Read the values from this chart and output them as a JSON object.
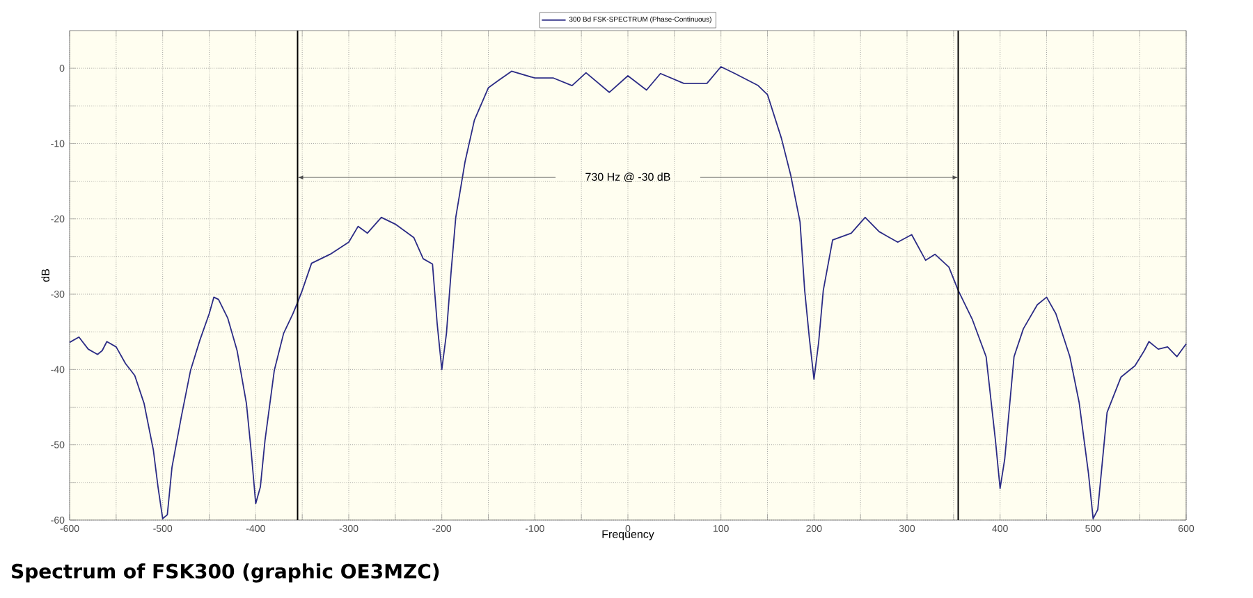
{
  "chart_data": {
    "type": "line",
    "title": "Spectrum of FSK300 (graphic OE3MZC)",
    "xlabel": "Frequency",
    "ylabel": "dB",
    "xlim": [
      -600,
      600
    ],
    "ylim": [
      -60,
      5
    ],
    "xticks": [
      -600,
      {
        "value": -550,
        "label": null
      },
      -500,
      {
        "value": -450,
        "label": null
      },
      -400,
      {
        "value": -350,
        "label": null
      },
      -300,
      {
        "value": -250,
        "label": null
      },
      -200,
      {
        "value": -150,
        "label": null
      },
      -100,
      {
        "value": -50,
        "label": null
      },
      0,
      {
        "value": 50,
        "label": null
      },
      100,
      {
        "value": 150,
        "label": null
      },
      200,
      {
        "value": 250,
        "label": null
      },
      300,
      {
        "value": 350,
        "label": null
      },
      400,
      {
        "value": 450,
        "label": null
      },
      500,
      {
        "value": 550,
        "label": null
      },
      600
    ],
    "yticks": [
      -60,
      {
        "value": -55,
        "label": null
      },
      -50,
      {
        "value": -45,
        "label": null
      },
      -40,
      {
        "value": -35,
        "label": null
      },
      -30,
      {
        "value": -25,
        "label": null
      },
      -20,
      {
        "value": -15,
        "label": null
      },
      -10,
      {
        "value": -5,
        "label": null
      },
      0
    ],
    "grid": true,
    "legend": "top",
    "line_style": "solid",
    "ref_lines": [
      {
        "axis": "x",
        "value": -355,
        "color": "#000000"
      },
      {
        "axis": "x",
        "value": 355,
        "color": "#000000"
      }
    ],
    "annotations": [
      "730 Hz @ -30 dB"
    ],
    "x": [
      -600,
      -590,
      -580,
      -570,
      -565,
      -560,
      -550,
      -540,
      -530,
      -520,
      -510,
      -505,
      -500,
      -495,
      -490,
      -480,
      -470,
      -460,
      -450,
      -445,
      -440,
      -430,
      -420,
      -410,
      -405,
      -400,
      -395,
      -390,
      -380,
      -370,
      -360,
      -355,
      -350,
      -340,
      -320,
      -300,
      -290,
      -280,
      -265,
      -250,
      -230,
      -220,
      -210,
      -205,
      -200,
      -195,
      -190,
      -185,
      -175,
      -165,
      -150,
      -140,
      -125,
      -100,
      -80,
      -60,
      -45,
      -20,
      0,
      20,
      35,
      60,
      85,
      100,
      115,
      140,
      150,
      165,
      175,
      185,
      190,
      195,
      200,
      205,
      210,
      220,
      240,
      255,
      270,
      290,
      305,
      320,
      330,
      345,
      355,
      370,
      385,
      395,
      400,
      405,
      415,
      425,
      440,
      450,
      460,
      475,
      485,
      495,
      500,
      505,
      515,
      530,
      545,
      555,
      560,
      570,
      580,
      590,
      600
    ],
    "series": [
      {
        "name": "300 Bd FSK-SPECTRUM (Phase-Continuous)",
        "color": "#2b2b85",
        "values": [
          -36.4,
          -35.7,
          -37.3,
          -38,
          -37.5,
          -36.3,
          -37,
          -39.2,
          -40.8,
          -44.5,
          -50.7,
          -55.6,
          -59.8,
          -59.3,
          -53,
          -46.3,
          -40.1,
          -36.1,
          -32.6,
          -30.4,
          -30.7,
          -33.2,
          -37.5,
          -44.5,
          -50.7,
          -57.8,
          -55.6,
          -49.4,
          -40.1,
          -35.2,
          -32.6,
          -31.1,
          -29.5,
          -25.9,
          -24.7,
          -23.1,
          -21,
          -21.9,
          -19.8,
          -20.7,
          -22.5,
          -25.3,
          -26,
          -33.9,
          -40,
          -35.2,
          -27,
          -19.8,
          -12.4,
          -6.9,
          -2.6,
          -1.7,
          -0.4,
          -1.3,
          -1.3,
          -2.3,
          -0.6,
          -3.2,
          -1,
          -2.9,
          -0.7,
          -2,
          -2,
          0.2,
          -0.7,
          -2.3,
          -3.5,
          -9.3,
          -14.2,
          -20.4,
          -29.5,
          -35.8,
          -41.3,
          -36.4,
          -29.5,
          -22.8,
          -21.9,
          -19.8,
          -21.7,
          -23.1,
          -22.1,
          -25.5,
          -24.7,
          -26.4,
          -29.5,
          -33.3,
          -38.3,
          -49.4,
          -55.8,
          -51.9,
          -38.3,
          -34.6,
          -31.4,
          -30.4,
          -32.6,
          -38.3,
          -44.4,
          -53.8,
          -59.8,
          -58.6,
          -45.7,
          -41,
          -39.5,
          -37.5,
          -36.3,
          -37.3,
          -37,
          -38.3,
          -36.6
        ]
      }
    ]
  }
}
